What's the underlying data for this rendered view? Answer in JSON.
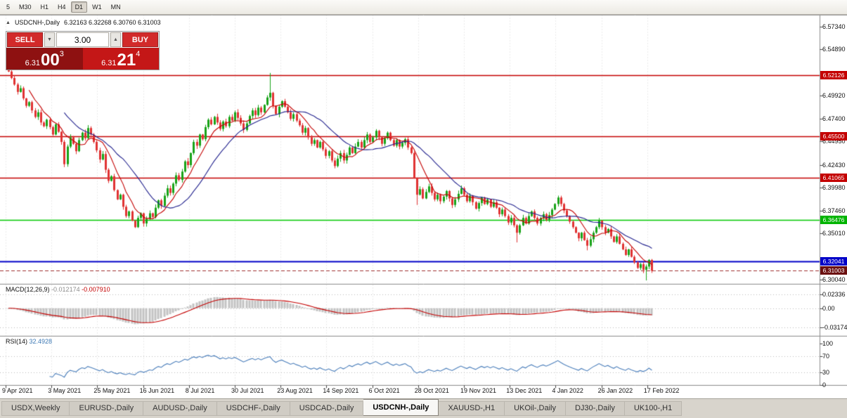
{
  "toolbar": {
    "timeframes": [
      "5",
      "M30",
      "H1",
      "H4",
      "D1",
      "W1",
      "MN"
    ],
    "active": "D1"
  },
  "icons": {
    "collapse": "▲",
    "spinner_up": "▲",
    "spinner_down": "▼"
  },
  "chart_header": {
    "symbol_title": "USDCNH-,Daily",
    "ohlc": "6.32163 6.32268 6.30760 6.31003"
  },
  "trade_panel": {
    "sell_label": "SELL",
    "buy_label": "BUY",
    "volume": "3.00",
    "sell_quote": {
      "prefix": "6.31",
      "big": "00",
      "sup": "3"
    },
    "buy_quote": {
      "prefix": "6.31",
      "big": "21",
      "sup": "4"
    }
  },
  "price_axis": {
    "ticks": [
      {
        "label": "6.57340",
        "price": 6.5734
      },
      {
        "label": "6.54890",
        "price": 6.5489
      },
      {
        "label": "6.49920",
        "price": 6.4992
      },
      {
        "label": "6.47400",
        "price": 6.474
      },
      {
        "label": "6.44950",
        "price": 6.4495
      },
      {
        "label": "6.42430",
        "price": 6.4243
      },
      {
        "label": "6.39980",
        "price": 6.3998
      },
      {
        "label": "6.37460",
        "price": 6.3746
      },
      {
        "label": "6.35010",
        "price": 6.3501
      },
      {
        "label": "6.30040",
        "price": 6.3004
      }
    ],
    "badges": [
      {
        "label": "6.52126",
        "price": 6.52126,
        "color": "#c40000"
      },
      {
        "label": "6.45500",
        "price": 6.455,
        "color": "#c40000"
      },
      {
        "label": "6.41065",
        "price": 6.41065,
        "color": "#c40000"
      },
      {
        "label": "6.36476",
        "price": 6.36476,
        "color": "#00b400"
      },
      {
        "label": "6.32041",
        "price": 6.32041,
        "color": "#0000c8"
      },
      {
        "label": "6.31003",
        "price": 6.31003,
        "color": "#6b1010"
      }
    ]
  },
  "macd_panel": {
    "name": "MACD(12,26,9)",
    "value": "-0.012174",
    "signal": "-0.007910",
    "axis": [
      {
        "label": "0.02336",
        "value": 0.02336
      },
      {
        "label": "0.00",
        "value": 0
      },
      {
        "label": "-0.03174",
        "value": -0.03174
      }
    ]
  },
  "rsi_panel": {
    "name": "RSI(14)",
    "value": "32.4928",
    "axis": [
      {
        "label": "100",
        "value": 100
      },
      {
        "label": "70",
        "value": 70
      },
      {
        "label": "30",
        "value": 30
      },
      {
        "label": "0",
        "value": 0
      }
    ]
  },
  "x_axis": {
    "dates": [
      "9 Apr 2021",
      "3 May 2021",
      "25 May 2021",
      "16 Jun 2021",
      "8 Jul 2021",
      "30 Jul 2021",
      "23 Aug 2021",
      "14 Sep 2021",
      "6 Oct 2021",
      "28 Oct 2021",
      "19 Nov 2021",
      "13 Dec 2021",
      "4 Jan 2022",
      "26 Jan 2022",
      "17 Feb 2022"
    ]
  },
  "tabs": {
    "items": [
      "USDX,Weekly",
      "EURUSD-,Daily",
      "AUDUSD-,Daily",
      "USDCHF-,Daily",
      "USDCAD-,Daily",
      "USDCNH-,Daily",
      "XAUUSD-,H1",
      "UKOil-,Daily",
      "DJ30-,Daily",
      "UK100-,H1"
    ],
    "active": "USDCNH-,Daily"
  },
  "chart_data": {
    "type": "candlestick",
    "symbol": "USDCNH",
    "timeframe": "Daily",
    "x_range": [
      "9 Apr 2021",
      "17 Feb 2022"
    ],
    "visible_price_range": [
      6.3004,
      6.5734
    ],
    "up_color": "#18a318",
    "down_color": "#e03232",
    "ma_fast_period": 8,
    "ma_slow_period": 20,
    "ma_fast_color": "#c40000",
    "ma_slow_color": "#24248f",
    "levels": [
      {
        "price": 6.52126,
        "color": "#c40000",
        "style": "solid",
        "lw": 1.3
      },
      {
        "price": 6.455,
        "color": "#c40000",
        "style": "solid",
        "lw": 1.3
      },
      {
        "price": 6.41065,
        "color": "#c40000",
        "style": "solid",
        "lw": 1.3
      },
      {
        "price": 6.36476,
        "color": "#00c800",
        "style": "solid",
        "lw": 1.6
      },
      {
        "price": 6.32041,
        "color": "#0000c8",
        "style": "solid",
        "lw": 1.8
      },
      {
        "price": 6.31003,
        "color": "#a03030",
        "style": "dash",
        "lw": 1
      }
    ],
    "first_open": 6.53,
    "closes": [
      6.525,
      6.518,
      6.511,
      6.503,
      6.507,
      6.496,
      6.488,
      6.492,
      6.483,
      6.476,
      6.481,
      6.47,
      6.466,
      6.473,
      6.465,
      6.457,
      6.468,
      6.46,
      6.449,
      6.425,
      6.444,
      6.454,
      6.447,
      6.439,
      6.451,
      6.459,
      6.453,
      6.464,
      6.457,
      6.449,
      6.44,
      6.43,
      6.436,
      6.419,
      6.407,
      6.412,
      6.397,
      6.387,
      6.392,
      6.379,
      6.369,
      6.374,
      6.364,
      6.357,
      6.367,
      6.372,
      6.361,
      6.366,
      6.372,
      6.368,
      6.378,
      6.386,
      6.38,
      6.391,
      6.399,
      6.394,
      6.404,
      6.413,
      6.408,
      6.417,
      6.428,
      6.424,
      6.437,
      6.449,
      6.445,
      6.457,
      6.452,
      6.465,
      6.473,
      6.468,
      6.476,
      6.47,
      6.463,
      6.471,
      6.466,
      6.476,
      6.472,
      6.481,
      6.475,
      6.469,
      6.462,
      6.469,
      6.477,
      6.483,
      6.478,
      6.486,
      6.481,
      6.489,
      6.497,
      6.502,
      6.488,
      6.479,
      6.487,
      6.493,
      6.487,
      6.481,
      6.474,
      6.479,
      6.472,
      6.467,
      6.459,
      6.464,
      6.454,
      6.447,
      6.451,
      6.443,
      6.449,
      6.441,
      6.434,
      6.439,
      6.429,
      6.423,
      6.431,
      6.437,
      6.429,
      6.435,
      6.443,
      6.437,
      6.444,
      6.449,
      6.443,
      6.451,
      6.457,
      6.449,
      6.454,
      6.461,
      6.454,
      6.447,
      6.453,
      6.459,
      6.451,
      6.445,
      6.451,
      6.444,
      6.448,
      6.452,
      6.443,
      6.437,
      6.41,
      6.392,
      6.398,
      6.388,
      6.395,
      6.401,
      6.394,
      6.387,
      6.392,
      6.385,
      6.39,
      6.396,
      6.388,
      6.381,
      6.387,
      6.393,
      6.399,
      6.392,
      6.385,
      6.391,
      6.384,
      6.377,
      6.383,
      6.389,
      6.382,
      6.387,
      6.379,
      6.384,
      6.378,
      6.371,
      6.376,
      6.369,
      6.362,
      6.367,
      6.359,
      6.351,
      6.359,
      6.367,
      6.361,
      6.369,
      6.374,
      6.367,
      6.361,
      6.367,
      6.371,
      6.365,
      6.37,
      6.376,
      6.382,
      6.389,
      6.382,
      6.375,
      6.369,
      6.363,
      6.357,
      6.351,
      6.345,
      6.351,
      6.343,
      6.337,
      6.344,
      6.351,
      6.357,
      6.364,
      6.357,
      6.351,
      6.355,
      6.347,
      6.341,
      6.347,
      6.339,
      6.333,
      6.327,
      6.333,
      6.325,
      6.319,
      6.313,
      6.317,
      6.311,
      6.3145,
      6.32163,
      6.31003
    ],
    "wick_overrides": {
      "89": {
        "high": 6.5235
      },
      "139": {
        "low": 6.381
      },
      "173": {
        "low": 6.3405
      },
      "197": {
        "low": 6.332
      },
      "217": {
        "low": 6.2995
      },
      "219": {
        "high": 6.32268,
        "low": 6.3076
      }
    },
    "macd": {
      "fast": 12,
      "slow": 26,
      "signal": 9,
      "hist_color": "#c2c2c2",
      "signal_color": "#c40000",
      "current": -0.012174,
      "current_signal": -0.00791
    },
    "rsi": {
      "period": 14,
      "color": "#4a7ebb",
      "current": 32.4928,
      "levels": [
        70,
        30
      ]
    }
  }
}
